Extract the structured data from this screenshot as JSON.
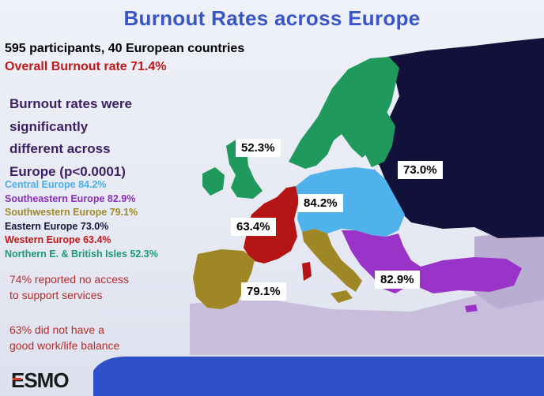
{
  "slide": {
    "title": "Burnout Rates across Europe",
    "participants": "595 participants, 40 European countries",
    "overall": "Overall Burnout rate 71.4%",
    "significance": [
      "Burnout rates were",
      "significantly",
      "different across",
      "Europe (p<0.0001)"
    ],
    "legend": [
      {
        "label": "Central Europe     84.2%",
        "color": "#4aaee6"
      },
      {
        "label": "Southeastern Europe 82.9%",
        "color": "#8a2fb8"
      },
      {
        "label": "Southwestern Europe 79.1%",
        "color": "#a08a2a"
      },
      {
        "label": "Eastern Europe      73.0%",
        "color": "#14143c"
      },
      {
        "label": "Western Europe 63.4%",
        "color": "#c01818"
      },
      {
        "label": "Northern E. & British Isles 52.3%",
        "color": "#1a9a7a"
      }
    ],
    "notes": {
      "support": [
        "74% reported no access",
        "to support services"
      ],
      "balance": [
        "63% did not have a",
        "good work/life balance"
      ]
    },
    "map_labels": {
      "north": "52.3%",
      "east": "73.0%",
      "central": "84.2%",
      "west": "63.4%",
      "southeast": "82.9%",
      "southwest": "79.1%"
    },
    "region_colors": {
      "north": "#1f9a5c",
      "east": "#12113a",
      "central": "#4fb2ea",
      "west": "#b41414",
      "southeast": "#9a33c8",
      "southwest": "#a08726",
      "other": "#c8bedc"
    },
    "logo_text": "ESMO"
  }
}
